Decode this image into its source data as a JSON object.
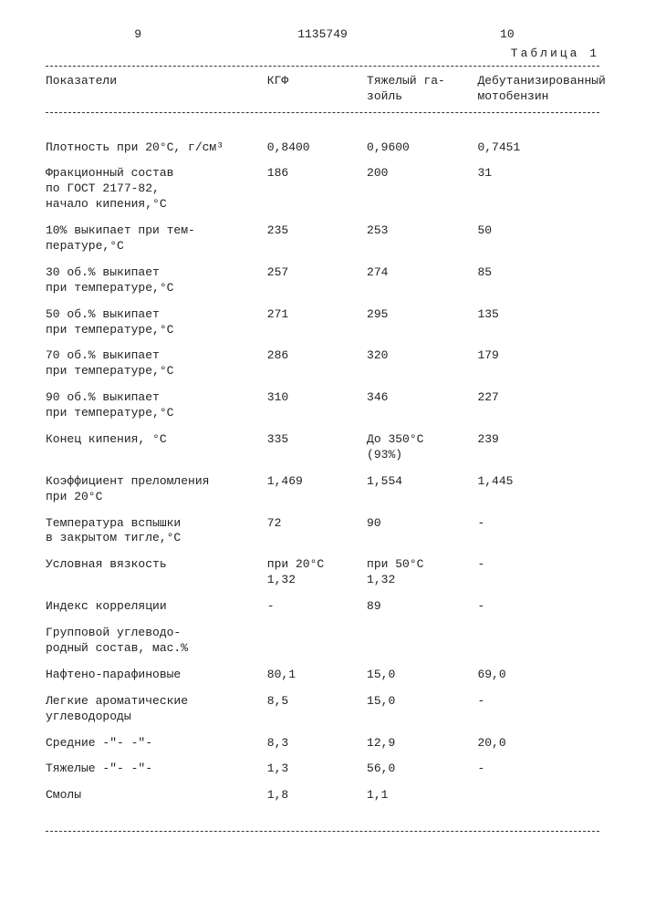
{
  "header": {
    "page_left": "9",
    "doc_number": "1135749",
    "page_right": "10",
    "table_caption": "Таблица 1"
  },
  "columns": {
    "c1": "Показатели",
    "c2": "КГФ",
    "c3": "Тяжелый га-\nзойль",
    "c4": "Дебутанизированный\nмотобензин"
  },
  "rows": [
    {
      "label": "Плотность при 20°С, г/см³",
      "v1": "0,8400",
      "v2": "0,9600",
      "v3": "0,7451"
    },
    {
      "label": "Фракционный состав\nпо ГОСТ 2177-82,\nначало кипения,°С",
      "v1": "186",
      "v2": "200",
      "v3": "31"
    },
    {
      "label": "10% выкипает при тем-\nпературе,°С",
      "v1": "235",
      "v2": "253",
      "v3": "50"
    },
    {
      "label": "30 об.% выкипает\nпри температуре,°С",
      "v1": "257",
      "v2": "274",
      "v3": "85"
    },
    {
      "label": "50 об.% выкипает\nпри температуре,°С",
      "v1": "271",
      "v2": "295",
      "v3": "135"
    },
    {
      "label": "70 об.% выкипает\nпри температуре,°С",
      "v1": "286",
      "v2": "320",
      "v3": "179"
    },
    {
      "label": "90 об.% выкипает\nпри температуре,°С",
      "v1": "310",
      "v2": "346",
      "v3": "227"
    },
    {
      "label": "Конец кипения, °С",
      "v1": "335",
      "v2": "До 350°С\n(93%)",
      "v3": "239"
    },
    {
      "label": "Коэффициент преломления\nпри 20°С",
      "v1": "1,469",
      "v2": "1,554",
      "v3": "1,445"
    },
    {
      "label": "Температура вспышки\nв закрытом тигле,°С",
      "v1": "72",
      "v2": "90",
      "v3": "-"
    },
    {
      "label": "Условная вязкость",
      "v1": "при 20°С\n1,32",
      "v2": "при 50°С\n1,32",
      "v3": "-"
    },
    {
      "label": "Индекс корреляции",
      "v1": "-",
      "v2": "89",
      "v3": "-"
    },
    {
      "label": "Групповой углеводо-\nродный состав, мас.%",
      "v1": "",
      "v2": "",
      "v3": ""
    },
    {
      "label": "Нафтено-парафиновые",
      "v1": "80,1",
      "v2": "15,0",
      "v3": "69,0"
    },
    {
      "label": "Легкие ароматические\nуглеводороды",
      "v1": "8,5",
      "v2": "15,0",
      "v3": "-"
    },
    {
      "label": "Средние    -\"-     -\"-",
      "v1": "8,3",
      "v2": "12,9",
      "v3": "20,0"
    },
    {
      "label": "Тяжелые    -\"-     -\"-",
      "v1": "1,3",
      "v2": "56,0",
      "v3": "-"
    },
    {
      "label": "Смолы",
      "v1": "1,8",
      "v2": "1,1",
      "v3": ""
    }
  ]
}
